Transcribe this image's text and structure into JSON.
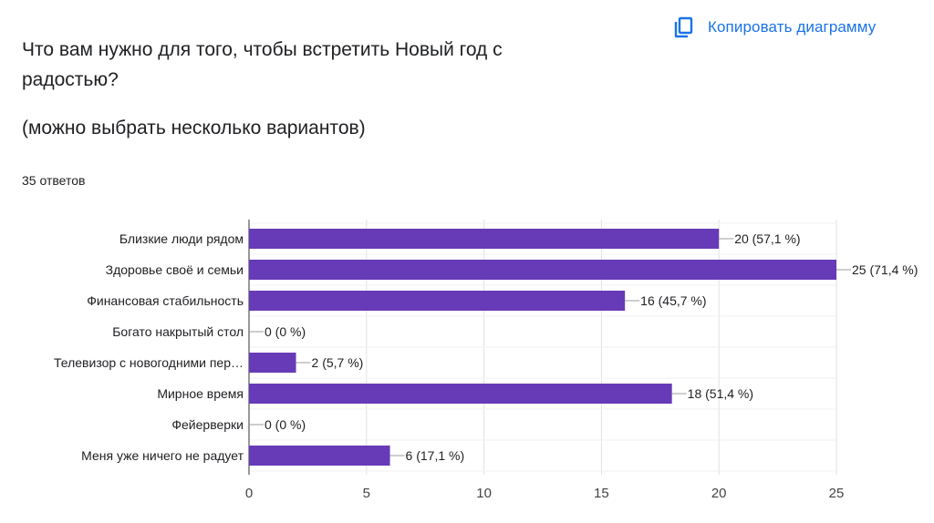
{
  "question": {
    "title": "Что вам нужно для того, чтобы встретить Новый год с радостью?",
    "subtitle": "(можно выбрать несколько вариантов)",
    "responses": "35 ответов"
  },
  "toolbar": {
    "copy_label": "Копировать диаграмму",
    "copy_icon": "copy-icon"
  },
  "colors": {
    "bar": "#673ab7",
    "accent": "#1a73e8",
    "grid": "#e0e0e0",
    "text": "#202124"
  },
  "chart_data": {
    "type": "bar",
    "orientation": "horizontal",
    "categories": [
      "Близкие люди рядом",
      "Здоровье своё и семьи",
      "Финансовая стабильность",
      "Богато накрытый стол",
      "Телевизор с новогодними пер…",
      "Мирное время",
      "Фейерверки",
      "Меня уже ничего не радует"
    ],
    "values": [
      20,
      25,
      16,
      0,
      2,
      18,
      0,
      6
    ],
    "data_labels": [
      "20 (57,1 %)",
      "25 (71,4 %)",
      "16 (45,7 %)",
      "0 (0 %)",
      "2 (5,7 %)",
      "18 (51,4 %)",
      "0 (0 %)",
      "6 (17,1 %)"
    ],
    "xlim": [
      0,
      25
    ],
    "xticks": [
      "0",
      "5",
      "10",
      "15",
      "20",
      "25"
    ],
    "grid": true,
    "legend": "none"
  }
}
